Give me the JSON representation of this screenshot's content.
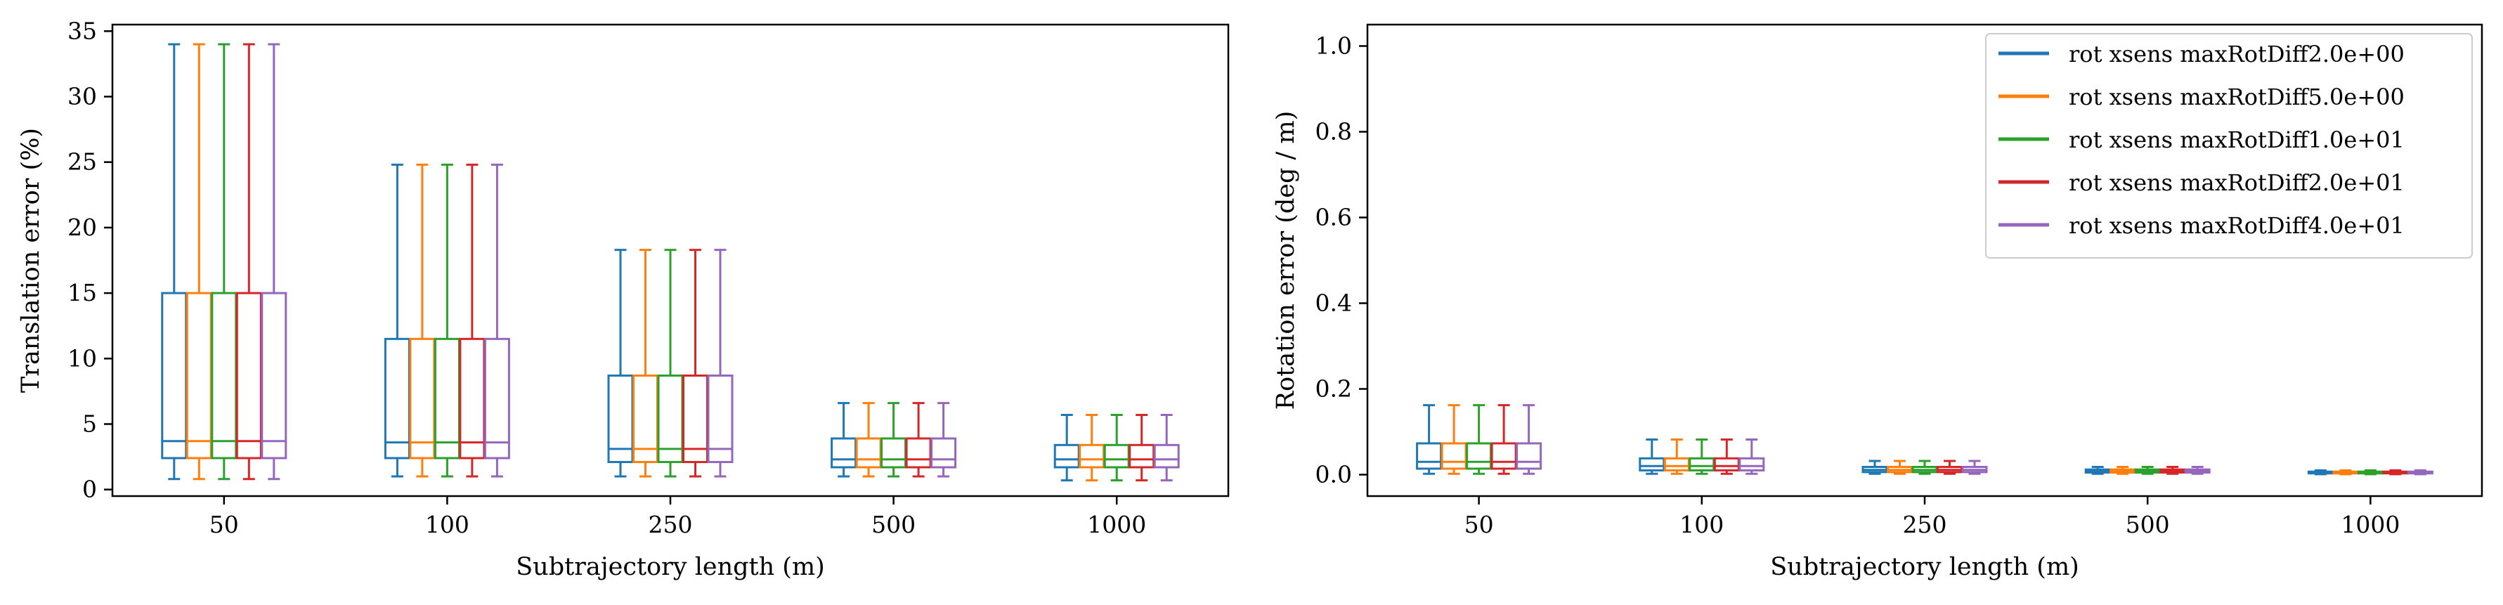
{
  "chart_data": [
    {
      "type": "box",
      "xlabel": "Subtrajectory length (m)",
      "ylabel": "Translation error (%)",
      "categories": [
        "50",
        "100",
        "250",
        "500",
        "1000"
      ],
      "ylim": [
        -0.5,
        35.5
      ],
      "yticks": [
        0,
        5,
        10,
        15,
        20,
        25,
        30,
        35
      ],
      "grid": false,
      "series": [
        {
          "name": "rot xsens maxRotDiff2.0e+00",
          "color": "#1f77b4",
          "boxes": [
            {
              "whislo": 0.8,
              "q1": 2.4,
              "median": 3.7,
              "q3": 15.0,
              "whishi": 34.0
            },
            {
              "whislo": 1.0,
              "q1": 2.4,
              "median": 3.6,
              "q3": 11.5,
              "whishi": 24.8
            },
            {
              "whislo": 1.0,
              "q1": 2.1,
              "median": 3.1,
              "q3": 8.7,
              "whishi": 18.3
            },
            {
              "whislo": 1.0,
              "q1": 1.7,
              "median": 2.3,
              "q3": 3.9,
              "whishi": 6.6
            },
            {
              "whislo": 0.7,
              "q1": 1.7,
              "median": 2.3,
              "q3": 3.4,
              "whishi": 5.7
            }
          ]
        },
        {
          "name": "rot xsens maxRotDiff5.0e+00",
          "color": "#ff7f0e",
          "boxes": [
            {
              "whislo": 0.8,
              "q1": 2.4,
              "median": 3.7,
              "q3": 15.0,
              "whishi": 34.0
            },
            {
              "whislo": 1.0,
              "q1": 2.4,
              "median": 3.6,
              "q3": 11.5,
              "whishi": 24.8
            },
            {
              "whislo": 1.0,
              "q1": 2.1,
              "median": 3.1,
              "q3": 8.7,
              "whishi": 18.3
            },
            {
              "whislo": 1.0,
              "q1": 1.7,
              "median": 2.3,
              "q3": 3.9,
              "whishi": 6.6
            },
            {
              "whislo": 0.7,
              "q1": 1.7,
              "median": 2.3,
              "q3": 3.4,
              "whishi": 5.7
            }
          ]
        },
        {
          "name": "rot xsens maxRotDiff1.0e+01",
          "color": "#2ca02c",
          "boxes": [
            {
              "whislo": 0.8,
              "q1": 2.4,
              "median": 3.7,
              "q3": 15.0,
              "whishi": 34.0
            },
            {
              "whislo": 1.0,
              "q1": 2.4,
              "median": 3.6,
              "q3": 11.5,
              "whishi": 24.8
            },
            {
              "whislo": 1.0,
              "q1": 2.1,
              "median": 3.1,
              "q3": 8.7,
              "whishi": 18.3
            },
            {
              "whislo": 1.0,
              "q1": 1.7,
              "median": 2.3,
              "q3": 3.9,
              "whishi": 6.6
            },
            {
              "whislo": 0.7,
              "q1": 1.7,
              "median": 2.3,
              "q3": 3.4,
              "whishi": 5.7
            }
          ]
        },
        {
          "name": "rot xsens maxRotDiff2.0e+01",
          "color": "#d62728",
          "boxes": [
            {
              "whislo": 0.8,
              "q1": 2.4,
              "median": 3.7,
              "q3": 15.0,
              "whishi": 34.0
            },
            {
              "whislo": 1.0,
              "q1": 2.4,
              "median": 3.6,
              "q3": 11.5,
              "whishi": 24.8
            },
            {
              "whislo": 1.0,
              "q1": 2.1,
              "median": 3.1,
              "q3": 8.7,
              "whishi": 18.3
            },
            {
              "whislo": 1.0,
              "q1": 1.7,
              "median": 2.3,
              "q3": 3.9,
              "whishi": 6.6
            },
            {
              "whislo": 0.7,
              "q1": 1.7,
              "median": 2.3,
              "q3": 3.4,
              "whishi": 5.7
            }
          ]
        },
        {
          "name": "rot xsens maxRotDiff4.0e+01",
          "color": "#9467bd",
          "boxes": [
            {
              "whislo": 0.8,
              "q1": 2.4,
              "median": 3.7,
              "q3": 15.0,
              "whishi": 34.0
            },
            {
              "whislo": 1.0,
              "q1": 2.4,
              "median": 3.6,
              "q3": 11.5,
              "whishi": 24.8
            },
            {
              "whislo": 1.0,
              "q1": 2.1,
              "median": 3.1,
              "q3": 8.7,
              "whishi": 18.3
            },
            {
              "whislo": 1.0,
              "q1": 1.7,
              "median": 2.3,
              "q3": 3.9,
              "whishi": 6.6
            },
            {
              "whislo": 0.7,
              "q1": 1.7,
              "median": 2.3,
              "q3": 3.4,
              "whishi": 5.7
            }
          ]
        }
      ]
    },
    {
      "type": "box",
      "xlabel": "Subtrajectory length (m)",
      "ylabel": "Rotation error (deg / m)",
      "categories": [
        "50",
        "100",
        "250",
        "500",
        "1000"
      ],
      "ylim": [
        -0.05,
        1.05
      ],
      "yticks": [
        0.0,
        0.2,
        0.4,
        0.6,
        0.8,
        1.0
      ],
      "ytick_labels": [
        "0.0",
        "0.2",
        "0.4",
        "0.6",
        "0.8",
        "1.0"
      ],
      "grid": false,
      "legend": {
        "placement": "upper right"
      },
      "series": [
        {
          "name": "rot xsens maxRotDiff2.0e+00",
          "color": "#1f77b4",
          "boxes": [
            {
              "whislo": 0.002,
              "q1": 0.014,
              "median": 0.03,
              "q3": 0.073,
              "whishi": 0.162
            },
            {
              "whislo": 0.002,
              "q1": 0.01,
              "median": 0.02,
              "q3": 0.038,
              "whishi": 0.082
            },
            {
              "whislo": 0.002,
              "q1": 0.006,
              "median": 0.011,
              "q3": 0.018,
              "whishi": 0.032
            },
            {
              "whislo": 0.002,
              "q1": 0.005,
              "median": 0.008,
              "q3": 0.012,
              "whishi": 0.018
            },
            {
              "whislo": 0.001,
              "q1": 0.003,
              "median": 0.005,
              "q3": 0.007,
              "whishi": 0.01
            }
          ]
        },
        {
          "name": "rot xsens maxRotDiff5.0e+00",
          "color": "#ff7f0e",
          "boxes": [
            {
              "whislo": 0.002,
              "q1": 0.014,
              "median": 0.03,
              "q3": 0.073,
              "whishi": 0.162
            },
            {
              "whislo": 0.002,
              "q1": 0.01,
              "median": 0.02,
              "q3": 0.038,
              "whishi": 0.082
            },
            {
              "whislo": 0.002,
              "q1": 0.006,
              "median": 0.011,
              "q3": 0.018,
              "whishi": 0.032
            },
            {
              "whislo": 0.002,
              "q1": 0.005,
              "median": 0.008,
              "q3": 0.012,
              "whishi": 0.018
            },
            {
              "whislo": 0.001,
              "q1": 0.003,
              "median": 0.005,
              "q3": 0.007,
              "whishi": 0.01
            }
          ]
        },
        {
          "name": "rot xsens maxRotDiff1.0e+01",
          "color": "#2ca02c",
          "boxes": [
            {
              "whislo": 0.002,
              "q1": 0.014,
              "median": 0.03,
              "q3": 0.073,
              "whishi": 0.162
            },
            {
              "whislo": 0.002,
              "q1": 0.01,
              "median": 0.02,
              "q3": 0.038,
              "whishi": 0.082
            },
            {
              "whislo": 0.002,
              "q1": 0.006,
              "median": 0.011,
              "q3": 0.018,
              "whishi": 0.032
            },
            {
              "whislo": 0.002,
              "q1": 0.005,
              "median": 0.008,
              "q3": 0.012,
              "whishi": 0.018
            },
            {
              "whislo": 0.001,
              "q1": 0.003,
              "median": 0.005,
              "q3": 0.007,
              "whishi": 0.01
            }
          ]
        },
        {
          "name": "rot xsens maxRotDiff2.0e+01",
          "color": "#d62728",
          "boxes": [
            {
              "whislo": 0.002,
              "q1": 0.014,
              "median": 0.03,
              "q3": 0.073,
              "whishi": 0.162
            },
            {
              "whislo": 0.002,
              "q1": 0.01,
              "median": 0.02,
              "q3": 0.038,
              "whishi": 0.082
            },
            {
              "whislo": 0.002,
              "q1": 0.006,
              "median": 0.011,
              "q3": 0.018,
              "whishi": 0.032
            },
            {
              "whislo": 0.002,
              "q1": 0.005,
              "median": 0.008,
              "q3": 0.012,
              "whishi": 0.018
            },
            {
              "whislo": 0.001,
              "q1": 0.003,
              "median": 0.005,
              "q3": 0.007,
              "whishi": 0.01
            }
          ]
        },
        {
          "name": "rot xsens maxRotDiff4.0e+01",
          "color": "#9467bd",
          "boxes": [
            {
              "whislo": 0.002,
              "q1": 0.014,
              "median": 0.03,
              "q3": 0.073,
              "whishi": 0.162
            },
            {
              "whislo": 0.002,
              "q1": 0.01,
              "median": 0.02,
              "q3": 0.038,
              "whishi": 0.082
            },
            {
              "whislo": 0.002,
              "q1": 0.006,
              "median": 0.011,
              "q3": 0.018,
              "whishi": 0.032
            },
            {
              "whislo": 0.002,
              "q1": 0.005,
              "median": 0.008,
              "q3": 0.012,
              "whishi": 0.018
            },
            {
              "whislo": 0.001,
              "q1": 0.003,
              "median": 0.005,
              "q3": 0.007,
              "whishi": 0.01
            }
          ]
        }
      ]
    }
  ]
}
